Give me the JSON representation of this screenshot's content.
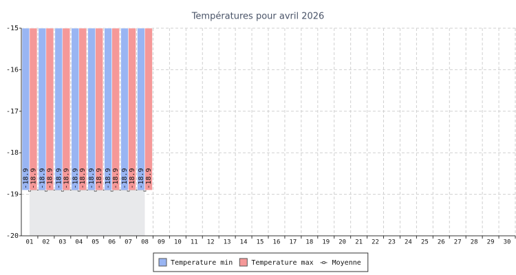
{
  "chart_data": {
    "type": "bar",
    "title": "Températures pour avril 2026",
    "categories": [
      "01",
      "02",
      "03",
      "04",
      "05",
      "06",
      "07",
      "08",
      "09",
      "10",
      "11",
      "12",
      "13",
      "14",
      "15",
      "16",
      "17",
      "18",
      "19",
      "20",
      "21",
      "22",
      "23",
      "24",
      "25",
      "26",
      "27",
      "28",
      "29",
      "30"
    ],
    "series": [
      {
        "name": "Temperature min",
        "color": "#99b5f3",
        "values": [
          -18.9,
          -18.9,
          -18.9,
          -18.9,
          -18.9,
          -18.9,
          -18.9,
          -18.9,
          null,
          null,
          null,
          null,
          null,
          null,
          null,
          null,
          null,
          null,
          null,
          null,
          null,
          null,
          null,
          null,
          null,
          null,
          null,
          null,
          null,
          null
        ]
      },
      {
        "name": "Temperature max",
        "color": "#f59898",
        "values": [
          -18.9,
          -18.9,
          -18.9,
          -18.9,
          -18.9,
          -18.9,
          -18.9,
          -18.9,
          null,
          null,
          null,
          null,
          null,
          null,
          null,
          null,
          null,
          null,
          null,
          null,
          null,
          null,
          null,
          null,
          null,
          null,
          null,
          null,
          null,
          null
        ]
      },
      {
        "name": "Moyenne",
        "type": "line",
        "color": "#e8e9eb",
        "values": [
          -18.9,
          -18.9,
          -18.9,
          -18.9,
          -18.9,
          -18.9,
          -18.9,
          -18.9,
          null,
          null,
          null,
          null,
          null,
          null,
          null,
          null,
          null,
          null,
          null,
          null,
          null,
          null,
          null,
          null,
          null,
          null,
          null,
          null,
          null,
          null
        ]
      }
    ],
    "ylim": [
      -20,
      -15
    ],
    "yticks": [
      -20,
      -19,
      -18,
      -17,
      -16,
      -15
    ],
    "grid": true,
    "legend": "bottom"
  }
}
